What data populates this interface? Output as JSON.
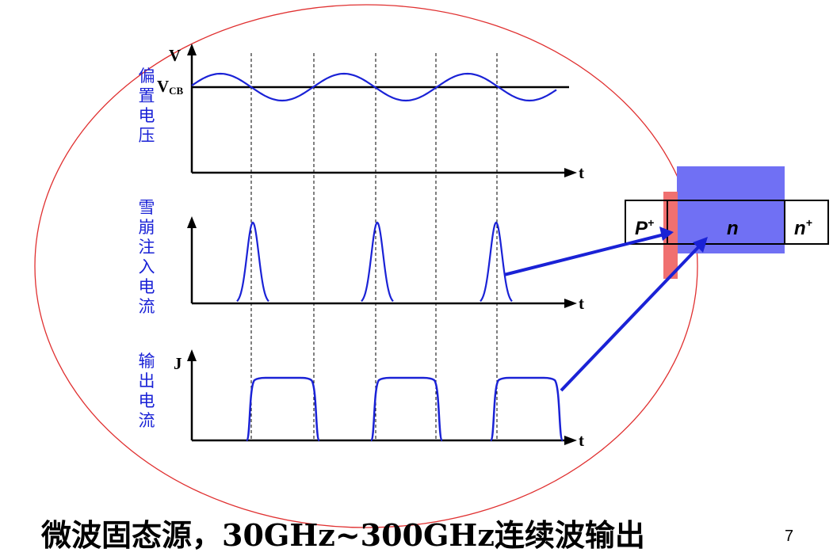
{
  "diagram": {
    "bias_voltage_label": "偏置电压",
    "avalanche_current_label": "雪崩注入电流",
    "output_current_label": "输出电流",
    "v_axis": "V",
    "vcb_main": "V",
    "vcb_sub": "CB",
    "j_axis": "J",
    "t_axis_1": "t",
    "t_axis_2": "t",
    "t_axis_3": "t",
    "device": {
      "p_main": "P",
      "p_sup": "+",
      "n_label": "n",
      "n_plus_main": "n",
      "n_plus_sup": "+"
    },
    "colors": {
      "curve": "#1a22d6",
      "ellipse": "#e03030",
      "highlight_blue": "#7070f4",
      "highlight_red": "#f07070"
    }
  },
  "caption": "微波固态源，30GHz~300GHz连续波输出",
  "page_number": "7"
}
